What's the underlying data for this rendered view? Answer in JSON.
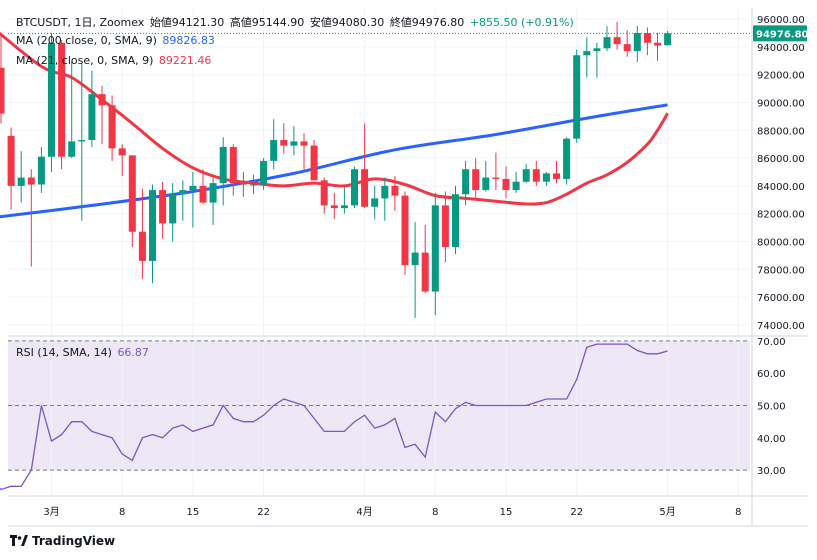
{
  "header": {
    "symbol": "BTCUSDT, 1日, Zoomex",
    "open": "始値94121.30",
    "high": "高値95144.90",
    "low": "安値94080.30",
    "close": "終値94976.80",
    "change": "+855.50 (+0.91%)"
  },
  "indicators": {
    "ma200_label": "MA (200 close, 0, SMA, 9)",
    "ma200_value": "89826.83",
    "ma21_label": "MA (21, close, 0, SMA, 9)",
    "ma21_value": "89221.46",
    "rsi_label": "RSI (14, SMA, 14)",
    "rsi_value": "66.87"
  },
  "last_price_label": "94976.80",
  "brand": "TradingView",
  "colors": {
    "up": "#089981",
    "down": "#f23645",
    "ma200": "#2962ff",
    "ma21": "#f23645",
    "rsi": "#7e57c2",
    "rsi_band": "#ede7f6"
  },
  "chart_data": [
    {
      "type": "candlestick",
      "title": "BTCUSDT, 1日, Zoomex",
      "y_ticks": [
        "74000.00",
        "76000.00",
        "78000.00",
        "80000.00",
        "82000.00",
        "84000.00",
        "86000.00",
        "88000.00",
        "90000.00",
        "92000.00",
        "94000.00",
        "96000.00"
      ],
      "ylim": [
        73200,
        96800
      ],
      "x_tick_labels": [
        {
          "label": "3月",
          "day": 1
        },
        {
          "label": "8",
          "day": 8
        },
        {
          "label": "15",
          "day": 15
        },
        {
          "label": "22",
          "day": 22
        },
        {
          "label": "4月",
          "day": 32
        },
        {
          "label": "8",
          "day": 39
        },
        {
          "label": "15",
          "day": 46
        },
        {
          "label": "22",
          "day": 53
        },
        {
          "label": "5月",
          "day": 62
        },
        {
          "label": "8",
          "day": 69
        }
      ],
      "candles": [
        {
          "day": -4,
          "o": 92500,
          "h": 94800,
          "l": 88500,
          "c": 89200
        },
        {
          "day": -3,
          "o": 87600,
          "h": 88200,
          "l": 82300,
          "c": 84000
        },
        {
          "day": -2,
          "o": 84000,
          "h": 86500,
          "l": 82800,
          "c": 84600
        },
        {
          "day": -1,
          "o": 84600,
          "h": 85200,
          "l": 78200,
          "c": 84100
        },
        {
          "day": 0,
          "o": 84100,
          "h": 86800,
          "l": 83500,
          "c": 86100
        },
        {
          "day": 1,
          "o": 86100,
          "h": 95000,
          "l": 85000,
          "c": 94300
        },
        {
          "day": 2,
          "o": 94300,
          "h": 94500,
          "l": 85200,
          "c": 86100
        },
        {
          "day": 3,
          "o": 86100,
          "h": 93000,
          "l": 86000,
          "c": 87200
        },
        {
          "day": 4,
          "o": 87200,
          "h": 92800,
          "l": 81500,
          "c": 87300
        },
        {
          "day": 5,
          "o": 87300,
          "h": 92300,
          "l": 86800,
          "c": 90600
        },
        {
          "day": 6,
          "o": 90600,
          "h": 91200,
          "l": 87000,
          "c": 89800
        },
        {
          "day": 7,
          "o": 89800,
          "h": 90500,
          "l": 85800,
          "c": 86700
        },
        {
          "day": 8,
          "o": 86700,
          "h": 87000,
          "l": 84700,
          "c": 86200
        },
        {
          "day": 9,
          "o": 86200,
          "h": 86200,
          "l": 79600,
          "c": 80700
        },
        {
          "day": 10,
          "o": 80700,
          "h": 83800,
          "l": 77300,
          "c": 78600
        },
        {
          "day": 11,
          "o": 78600,
          "h": 84100,
          "l": 77000,
          "c": 83700
        },
        {
          "day": 12,
          "o": 83700,
          "h": 84300,
          "l": 80200,
          "c": 81300
        },
        {
          "day": 13,
          "o": 81300,
          "h": 84200,
          "l": 80000,
          "c": 83400
        },
        {
          "day": 14,
          "o": 83400,
          "h": 84400,
          "l": 81500,
          "c": 83700
        },
        {
          "day": 15,
          "o": 83700,
          "h": 85000,
          "l": 81000,
          "c": 84000
        },
        {
          "day": 16,
          "o": 84000,
          "h": 85200,
          "l": 82700,
          "c": 82800
        },
        {
          "day": 17,
          "o": 82800,
          "h": 84600,
          "l": 81200,
          "c": 84200
        },
        {
          "day": 18,
          "o": 84200,
          "h": 87500,
          "l": 82600,
          "c": 86800
        },
        {
          "day": 19,
          "o": 86800,
          "h": 87000,
          "l": 83300,
          "c": 84200
        },
        {
          "day": 20,
          "o": 84200,
          "h": 85000,
          "l": 83200,
          "c": 84100
        },
        {
          "day": 21,
          "o": 84100,
          "h": 84800,
          "l": 83400,
          "c": 84100
        },
        {
          "day": 22,
          "o": 84100,
          "h": 86000,
          "l": 83700,
          "c": 85800
        },
        {
          "day": 23,
          "o": 85800,
          "h": 88800,
          "l": 85200,
          "c": 87300
        },
        {
          "day": 24,
          "o": 87300,
          "h": 88500,
          "l": 86300,
          "c": 86900
        },
        {
          "day": 25,
          "o": 86900,
          "h": 88300,
          "l": 86200,
          "c": 87200
        },
        {
          "day": 26,
          "o": 87200,
          "h": 87800,
          "l": 85200,
          "c": 86900
        },
        {
          "day": 27,
          "o": 86900,
          "h": 87300,
          "l": 84400,
          "c": 84400
        },
        {
          "day": 28,
          "o": 84400,
          "h": 84600,
          "l": 82000,
          "c": 82600
        },
        {
          "day": 29,
          "o": 82600,
          "h": 83500,
          "l": 81600,
          "c": 82400
        },
        {
          "day": 30,
          "o": 82400,
          "h": 83900,
          "l": 82000,
          "c": 82600
        },
        {
          "day": 31,
          "o": 82600,
          "h": 85400,
          "l": 82400,
          "c": 85200
        },
        {
          "day": 32,
          "o": 85200,
          "h": 88500,
          "l": 82400,
          "c": 82500
        },
        {
          "day": 33,
          "o": 82500,
          "h": 84000,
          "l": 81600,
          "c": 83100
        },
        {
          "day": 34,
          "o": 83100,
          "h": 84600,
          "l": 81500,
          "c": 84000
        },
        {
          "day": 35,
          "o": 84000,
          "h": 84700,
          "l": 82200,
          "c": 83300
        },
        {
          "day": 36,
          "o": 83300,
          "h": 83600,
          "l": 77600,
          "c": 78300
        },
        {
          "day": 37,
          "o": 78300,
          "h": 81400,
          "l": 74500,
          "c": 79200
        },
        {
          "day": 38,
          "o": 79200,
          "h": 81200,
          "l": 76300,
          "c": 76400
        },
        {
          "day": 39,
          "o": 76400,
          "h": 83500,
          "l": 74700,
          "c": 82600
        },
        {
          "day": 40,
          "o": 82600,
          "h": 83600,
          "l": 78500,
          "c": 79600
        },
        {
          "day": 41,
          "o": 79600,
          "h": 84000,
          "l": 79100,
          "c": 83400
        },
        {
          "day": 42,
          "o": 83400,
          "h": 85800,
          "l": 82600,
          "c": 85200
        },
        {
          "day": 43,
          "o": 85200,
          "h": 86000,
          "l": 83000,
          "c": 83700
        },
        {
          "day": 44,
          "o": 83700,
          "h": 85800,
          "l": 83600,
          "c": 84600
        },
        {
          "day": 45,
          "o": 84600,
          "h": 86400,
          "l": 83700,
          "c": 84500
        },
        {
          "day": 46,
          "o": 84500,
          "h": 85400,
          "l": 83100,
          "c": 83700
        },
        {
          "day": 47,
          "o": 83700,
          "h": 85000,
          "l": 83500,
          "c": 84300
        },
        {
          "day": 48,
          "o": 84300,
          "h": 85600,
          "l": 84200,
          "c": 85200
        },
        {
          "day": 49,
          "o": 85200,
          "h": 85800,
          "l": 84000,
          "c": 84300
        },
        {
          "day": 50,
          "o": 84300,
          "h": 85000,
          "l": 84000,
          "c": 84900
        },
        {
          "day": 51,
          "o": 84900,
          "h": 85800,
          "l": 84200,
          "c": 84500
        },
        {
          "day": 52,
          "o": 84500,
          "h": 87500,
          "l": 84100,
          "c": 87400
        },
        {
          "day": 53,
          "o": 87400,
          "h": 93800,
          "l": 87100,
          "c": 93400
        },
        {
          "day": 54,
          "o": 93400,
          "h": 94700,
          "l": 91800,
          "c": 93700
        },
        {
          "day": 55,
          "o": 93700,
          "h": 94300,
          "l": 91800,
          "c": 93900
        },
        {
          "day": 56,
          "o": 93900,
          "h": 95500,
          "l": 93700,
          "c": 94700
        },
        {
          "day": 57,
          "o": 94700,
          "h": 95800,
          "l": 93800,
          "c": 94200
        },
        {
          "day": 58,
          "o": 94200,
          "h": 95200,
          "l": 93300,
          "c": 93700
        },
        {
          "day": 59,
          "o": 93700,
          "h": 95500,
          "l": 92900,
          "c": 95000
        },
        {
          "day": 60,
          "o": 95000,
          "h": 95400,
          "l": 93400,
          "c": 94300
        },
        {
          "day": 61,
          "o": 94300,
          "h": 95000,
          "l": 93000,
          "c": 94100
        },
        {
          "day": 62,
          "o": 94121.3,
          "h": 95144.9,
          "l": 94080.3,
          "c": 94976.8
        }
      ],
      "ma200": {
        "name": "MA (200 close, 0, SMA, 9)",
        "points": [
          [
            -5,
            81700
          ],
          [
            5,
            82600
          ],
          [
            15,
            83600
          ],
          [
            25,
            84900
          ],
          [
            35,
            86600
          ],
          [
            45,
            87700
          ],
          [
            55,
            89000
          ],
          [
            62,
            89826.83
          ]
        ]
      },
      "ma21": {
        "name": "MA (21, close, 0, SMA, 9)",
        "points": [
          [
            -5,
            95500
          ],
          [
            0,
            92600
          ],
          [
            3,
            91800
          ],
          [
            6,
            90200
          ],
          [
            9,
            88500
          ],
          [
            12,
            86700
          ],
          [
            15,
            85300
          ],
          [
            18,
            84500
          ],
          [
            21,
            84200
          ],
          [
            24,
            84000
          ],
          [
            27,
            84200
          ],
          [
            30,
            84000
          ],
          [
            33,
            84500
          ],
          [
            36,
            84100
          ],
          [
            39,
            83300
          ],
          [
            42,
            83100
          ],
          [
            45,
            82900
          ],
          [
            48,
            82700
          ],
          [
            50,
            82800
          ],
          [
            52,
            83400
          ],
          [
            54,
            84200
          ],
          [
            56,
            84800
          ],
          [
            58,
            85700
          ],
          [
            60,
            87000
          ],
          [
            61,
            88000
          ],
          [
            62,
            89221.46
          ]
        ]
      }
    },
    {
      "type": "line",
      "title": "RSI (14, SMA, 14)",
      "y_ticks": [
        "30.00",
        "40.00",
        "50.00",
        "60.00",
        "70.00"
      ],
      "ylim": [
        22,
        71.5
      ],
      "band": [
        30,
        70
      ],
      "x": [
        -5,
        -4,
        -3,
        -2,
        -1,
        0,
        1,
        2,
        3,
        4,
        5,
        6,
        7,
        8,
        9,
        10,
        11,
        12,
        13,
        14,
        15,
        16,
        17,
        18,
        19,
        20,
        21,
        22,
        23,
        24,
        25,
        26,
        27,
        28,
        29,
        30,
        31,
        32,
        33,
        34,
        35,
        36,
        37,
        38,
        39,
        40,
        41,
        42,
        43,
        44,
        45,
        46,
        47,
        48,
        49,
        50,
        51,
        52,
        53,
        54,
        55,
        56,
        57,
        58,
        59,
        60,
        61,
        62
      ],
      "values": [
        27,
        24,
        25,
        25,
        30,
        50,
        39,
        41,
        45,
        45,
        42,
        41,
        40,
        35,
        33,
        40,
        41,
        40,
        43,
        44,
        42,
        43,
        44,
        50,
        46,
        45,
        45,
        47,
        50,
        52,
        51,
        50,
        46,
        42,
        42,
        42,
        45,
        47,
        43,
        44,
        46,
        37,
        38,
        34,
        48,
        45,
        49,
        51,
        50,
        50,
        50,
        50,
        50,
        50,
        51,
        52,
        52,
        52,
        58,
        68,
        69,
        69,
        69,
        69,
        67,
        66,
        66,
        66.87
      ]
    }
  ]
}
